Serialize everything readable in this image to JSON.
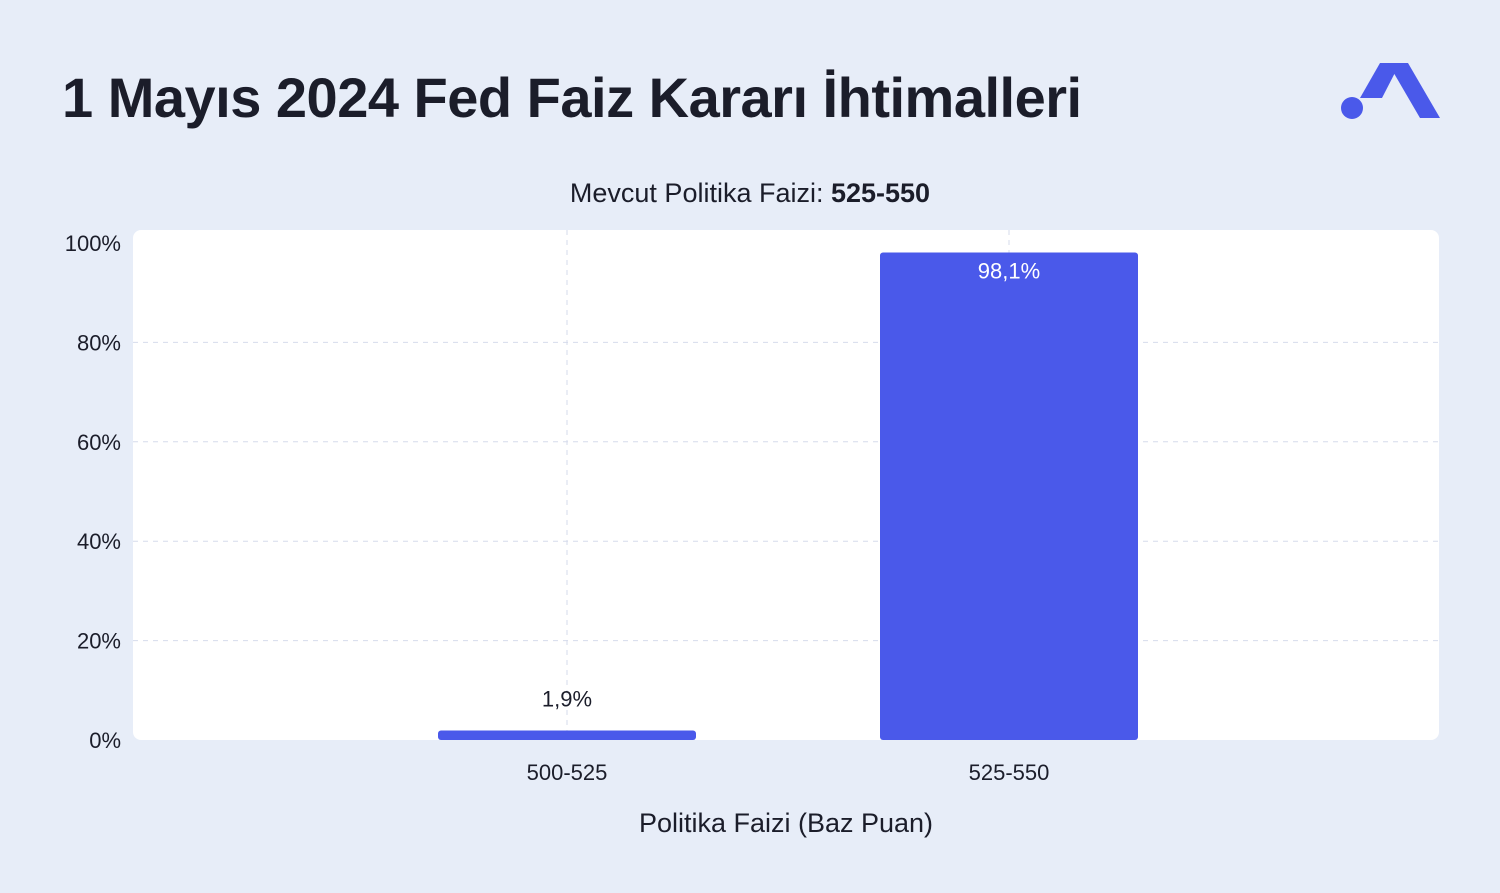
{
  "header": {
    "title": "1 Mayıs 2024 Fed Faiz Kararı İhtimalleri",
    "logo_icon": "brand-m-logo-icon"
  },
  "subtitle": {
    "prefix": "Mevcut Politika Faizi: ",
    "value": "525-550"
  },
  "colors": {
    "background": "#e7edf8",
    "plot_area": "#ffffff",
    "bar": "#4a59ea",
    "grid": "#d6dbeb",
    "text": "#1b1d2a"
  },
  "chart_data": {
    "type": "bar",
    "title": "Mevcut Politika Faizi: 525-550",
    "categories": [
      "500-525",
      "525-550"
    ],
    "values": [
      1.9,
      98.1
    ],
    "value_labels": [
      "1,9%",
      "98,1%"
    ],
    "xlabel": "Politika Faizi (Baz Puan)",
    "ylabel": "",
    "ylim": [
      0,
      100
    ],
    "yticks": [
      0,
      20,
      40,
      60,
      80,
      100
    ],
    "ytick_labels": [
      "0%",
      "20%",
      "40%",
      "60%",
      "80%",
      "100%"
    ],
    "grid": true,
    "legend": "none"
  }
}
